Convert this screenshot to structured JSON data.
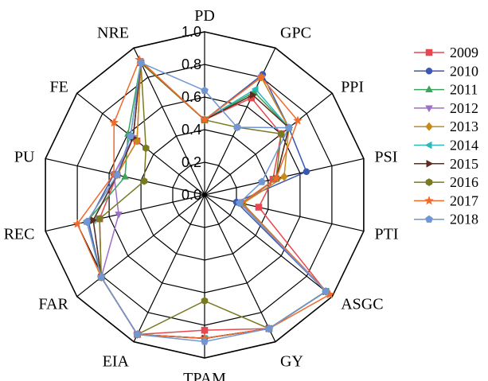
{
  "chart_data": {
    "type": "radar",
    "title": "",
    "axes": [
      "PD",
      "GPC",
      "PPI",
      "PSI",
      "PTI",
      "ASGC",
      "GY",
      "TPAM",
      "EIA",
      "FAR",
      "REC",
      "PU",
      "FE",
      "NRE"
    ],
    "ticks": [
      "0.0",
      "0.2",
      "0.4",
      "0.6",
      "0.8",
      "1.0"
    ],
    "rlim": [
      0,
      1.0
    ],
    "grid": true,
    "legend": "right",
    "series": [
      {
        "name": "2009",
        "color": "#e8474f",
        "marker": "square",
        "values": [
          0.46,
          0.66,
          0.6,
          0.43,
          0.34,
          0.95,
          0.91,
          0.83,
          0.95,
          0.81,
          0.66,
          0.55,
          0.53,
          0.9
        ]
      },
      {
        "name": "2010",
        "color": "#3b57b4",
        "marker": "circle",
        "values": [
          0.46,
          0.82,
          0.66,
          0.64,
          0.2,
          0.95,
          0.91,
          0.88,
          0.95,
          0.81,
          0.73,
          0.57,
          0.56,
          0.9
        ]
      },
      {
        "name": "2011",
        "color": "#3aa35c",
        "marker": "triangle-up",
        "values": [
          0.46,
          0.7,
          0.66,
          0.45,
          0.24,
          0.95,
          0.91,
          0.88,
          0.95,
          0.81,
          0.74,
          0.5,
          0.6,
          0.9
        ]
      },
      {
        "name": "2012",
        "color": "#9e6fc8",
        "marker": "triangle-down",
        "values": [
          0.46,
          0.8,
          0.66,
          0.45,
          0.24,
          0.95,
          0.91,
          0.88,
          0.95,
          0.81,
          0.54,
          0.57,
          0.56,
          0.9
        ]
      },
      {
        "name": "2013",
        "color": "#c88a18",
        "marker": "diamond",
        "values": [
          0.46,
          0.8,
          0.66,
          0.5,
          0.24,
          0.95,
          0.91,
          0.88,
          0.95,
          0.81,
          0.74,
          0.55,
          0.53,
          0.9
        ]
      },
      {
        "name": "2014",
        "color": "#2bb8b8",
        "marker": "triangle-left",
        "values": [
          0.46,
          0.72,
          0.66,
          0.45,
          0.23,
          0.95,
          0.91,
          0.88,
          0.95,
          0.81,
          0.7,
          0.55,
          0.58,
          0.9
        ]
      },
      {
        "name": "2015",
        "color": "#5e2b1e",
        "marker": "triangle-right",
        "values": [
          0.46,
          0.68,
          0.66,
          0.45,
          0.23,
          0.95,
          0.91,
          0.88,
          0.95,
          0.81,
          0.7,
          0.55,
          0.56,
          0.9
        ]
      },
      {
        "name": "2016",
        "color": "#7a7a22",
        "marker": "hexagon",
        "values": [
          0.46,
          0.46,
          0.6,
          0.45,
          0.23,
          0.95,
          0.91,
          0.65,
          0.95,
          0.81,
          0.66,
          0.38,
          0.46,
          0.9
        ]
      },
      {
        "name": "2017",
        "color": "#f06a2a",
        "marker": "star",
        "values": [
          0.46,
          0.8,
          0.73,
          0.45,
          0.23,
          0.98,
          0.91,
          0.88,
          0.95,
          0.81,
          0.8,
          0.57,
          0.71,
          0.92
        ]
      },
      {
        "name": "2018",
        "color": "#7096d4",
        "marker": "pentagon",
        "values": [
          0.64,
          0.46,
          0.66,
          0.36,
          0.22,
          0.95,
          0.91,
          0.9,
          0.95,
          0.81,
          0.74,
          0.55,
          0.58,
          0.9
        ]
      }
    ]
  }
}
